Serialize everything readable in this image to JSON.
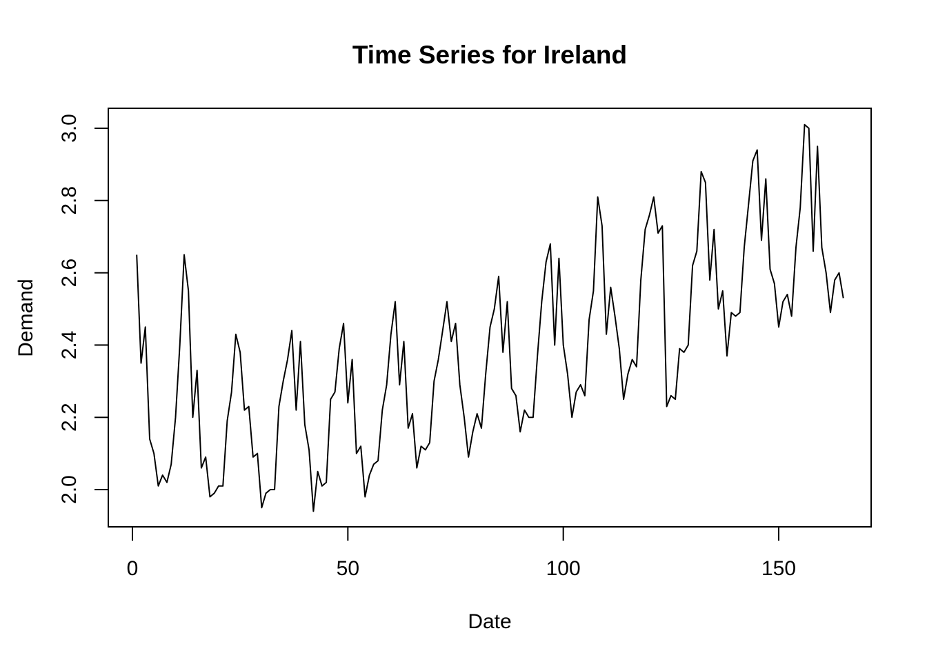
{
  "chart_data": {
    "type": "line",
    "title": "Time Series for Ireland",
    "xlabel": "Date",
    "ylabel": "Demand",
    "xlim": [
      0,
      170
    ],
    "ylim": [
      1.9,
      3.05
    ],
    "xticks": [
      0,
      50,
      100,
      150
    ],
    "xtick_labels": [
      "0",
      "50",
      "100",
      "150"
    ],
    "yticks": [
      2.0,
      2.2,
      2.4,
      2.6,
      2.8,
      3.0
    ],
    "ytick_labels": [
      "2.0",
      "2.2",
      "2.4",
      "2.6",
      "2.8",
      "3.0"
    ],
    "grid": false,
    "series": [
      {
        "color": "#000000",
        "x": [
          1,
          2,
          3,
          4,
          5,
          6,
          7,
          8,
          9,
          10,
          11,
          12,
          13,
          14,
          15,
          16,
          17,
          18,
          19,
          20,
          21,
          22,
          23,
          24,
          25,
          26,
          27,
          28,
          29,
          30,
          31,
          32,
          33,
          34,
          35,
          36,
          37,
          38,
          39,
          40,
          41,
          42,
          43,
          44,
          45,
          46,
          47,
          48,
          49,
          50,
          51,
          52,
          53,
          54,
          55,
          56,
          57,
          58,
          59,
          60,
          61,
          62,
          63,
          64,
          65,
          66,
          67,
          68,
          69,
          70,
          71,
          72,
          73,
          74,
          75,
          76,
          77,
          78,
          79,
          80,
          81,
          82,
          83,
          84,
          85,
          86,
          87,
          88,
          89,
          90,
          91,
          92,
          93,
          94,
          95,
          96,
          97,
          98,
          99,
          100,
          101,
          102,
          103,
          104,
          105,
          106,
          107,
          108,
          109,
          110,
          111,
          112,
          113,
          114,
          115,
          116,
          117,
          118,
          119,
          120,
          121,
          122,
          123,
          124,
          125,
          126,
          127,
          128,
          129,
          130,
          131,
          132,
          133,
          134,
          135,
          136,
          137,
          138,
          139,
          140,
          141,
          142,
          143,
          144,
          145,
          146,
          147,
          148,
          149,
          150,
          151,
          152,
          153,
          154,
          155,
          156,
          157,
          158,
          159,
          160,
          161,
          162,
          163,
          164,
          165
        ],
        "y": [
          2.65,
          2.35,
          2.45,
          2.14,
          2.1,
          2.01,
          2.04,
          2.02,
          2.07,
          2.2,
          2.4,
          2.65,
          2.55,
          2.2,
          2.33,
          2.06,
          2.09,
          1.98,
          1.99,
          2.01,
          2.01,
          2.19,
          2.27,
          2.43,
          2.38,
          2.22,
          2.23,
          2.09,
          2.1,
          1.95,
          1.99,
          2.0,
          2.0,
          2.23,
          2.3,
          2.36,
          2.44,
          2.22,
          2.41,
          2.18,
          2.11,
          1.94,
          2.05,
          2.01,
          2.02,
          2.25,
          2.27,
          2.39,
          2.46,
          2.24,
          2.36,
          2.1,
          2.12,
          1.98,
          2.04,
          2.07,
          2.08,
          2.22,
          2.29,
          2.43,
          2.52,
          2.29,
          2.41,
          2.17,
          2.21,
          2.06,
          2.12,
          2.11,
          2.13,
          2.3,
          2.36,
          2.44,
          2.52,
          2.41,
          2.46,
          2.29,
          2.2,
          2.09,
          2.16,
          2.21,
          2.17,
          2.32,
          2.45,
          2.5,
          2.59,
          2.38,
          2.52,
          2.28,
          2.26,
          2.16,
          2.22,
          2.2,
          2.2,
          2.37,
          2.52,
          2.63,
          2.68,
          2.4,
          2.64,
          2.4,
          2.32,
          2.2,
          2.27,
          2.29,
          2.26,
          2.47,
          2.55,
          2.81,
          2.73,
          2.43,
          2.56,
          2.48,
          2.39,
          2.25,
          2.32,
          2.36,
          2.34,
          2.58,
          2.72,
          2.76,
          2.81,
          2.71,
          2.73,
          2.23,
          2.26,
          2.25,
          2.39,
          2.38,
          2.4,
          2.62,
          2.66,
          2.88,
          2.85,
          2.58,
          2.72,
          2.5,
          2.55,
          2.37,
          2.49,
          2.48,
          2.49,
          2.67,
          2.79,
          2.91,
          2.94,
          2.69,
          2.86,
          2.61,
          2.57,
          2.45,
          2.52,
          2.54,
          2.48,
          2.67,
          2.78,
          3.01,
          3.0,
          2.66,
          2.95,
          2.67,
          2.6,
          2.49,
          2.58,
          2.6,
          2.53
        ]
      }
    ]
  }
}
